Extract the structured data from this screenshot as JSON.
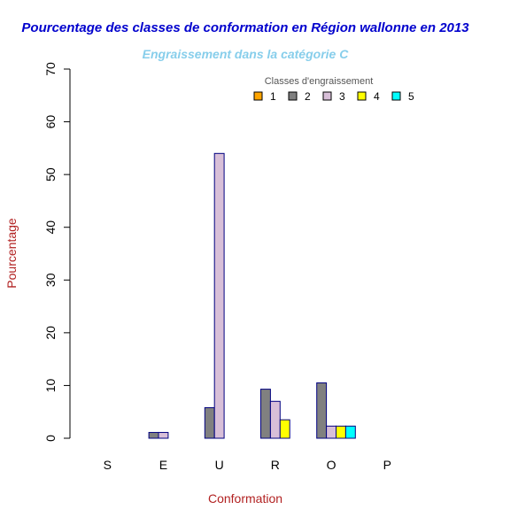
{
  "chart_data": {
    "type": "bar",
    "title": "Pourcentage des classes de conformation en Région wallonne en 2013",
    "subtitle": "Engraissement dans la catégorie C",
    "xlabel": "Conformation",
    "ylabel": "Pourcentage",
    "categories": [
      "S",
      "E",
      "U",
      "R",
      "O",
      "P"
    ],
    "ylim": [
      0,
      70
    ],
    "yticks": [
      "0",
      "10",
      "20",
      "30",
      "40",
      "50",
      "60",
      "70"
    ],
    "legend": {
      "title": "Classes d'engraissement",
      "placement": "top-right"
    },
    "series": [
      {
        "name": "1",
        "color": "#ffa500",
        "values": [
          0,
          0,
          0,
          0,
          0,
          0
        ]
      },
      {
        "name": "2",
        "color": "#808080",
        "values": [
          0,
          1.1,
          5.8,
          9.3,
          10.5,
          0
        ]
      },
      {
        "name": "3",
        "color": "#d8bfd8",
        "values": [
          0,
          1.1,
          54.0,
          7.0,
          2.3,
          0
        ]
      },
      {
        "name": "4",
        "color": "#ffff00",
        "values": [
          0,
          0,
          0,
          3.5,
          2.3,
          0
        ]
      },
      {
        "name": "5",
        "color": "#00ffff",
        "values": [
          0,
          0,
          0,
          0,
          2.3,
          0
        ]
      }
    ],
    "colors": {
      "title": "#0000cd",
      "subtitle": "#87ceeb",
      "axis_labels": "#b22222",
      "bar_border": "#000080"
    }
  }
}
